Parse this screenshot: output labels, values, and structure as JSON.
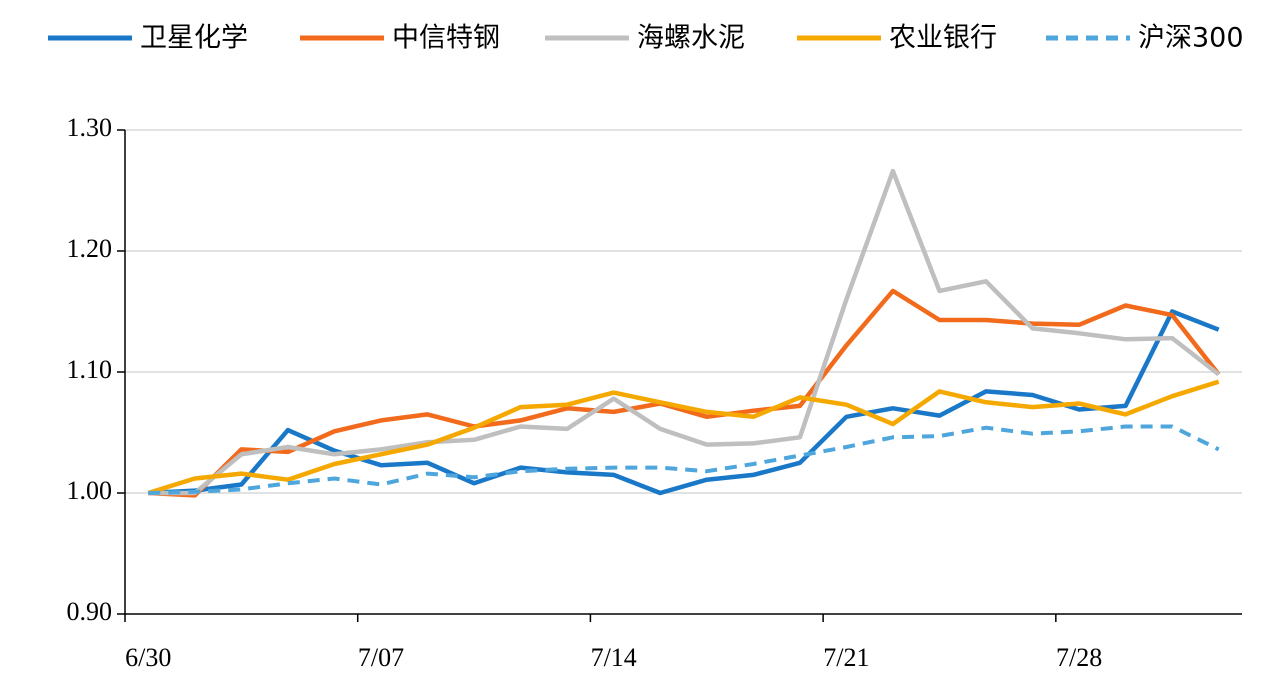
{
  "chart_data": {
    "type": "line",
    "categories": [
      "6/30",
      null,
      null,
      null,
      null,
      "7/07",
      null,
      null,
      null,
      null,
      "7/14",
      null,
      null,
      null,
      null,
      "7/21",
      null,
      null,
      null,
      null,
      "7/28",
      null,
      null,
      null
    ],
    "series": [
      {
        "name": "卫星化学",
        "color": "#1a78c8",
        "style": "solid",
        "values": [
          1.0,
          1.002,
          1.007,
          1.052,
          1.035,
          1.023,
          1.025,
          1.008,
          1.021,
          1.017,
          1.015,
          1.0,
          1.011,
          1.015,
          1.025,
          1.063,
          1.07,
          1.064,
          1.084,
          1.081,
          1.069,
          1.072,
          1.15,
          1.135
        ]
      },
      {
        "name": "中信特钢",
        "color": "#f26a1b",
        "style": "solid",
        "values": [
          1.0,
          0.998,
          1.036,
          1.034,
          1.051,
          1.06,
          1.065,
          1.055,
          1.06,
          1.07,
          1.067,
          1.074,
          1.063,
          1.068,
          1.072,
          1.122,
          1.167,
          1.143,
          1.143,
          1.14,
          1.139,
          1.155,
          1.147,
          1.098
        ]
      },
      {
        "name": "海螺水泥",
        "color": "#bfbfbf",
        "style": "solid",
        "values": [
          1.0,
          1.0,
          1.032,
          1.038,
          1.032,
          1.036,
          1.042,
          1.044,
          1.055,
          1.053,
          1.078,
          1.053,
          1.04,
          1.041,
          1.046,
          1.16,
          1.266,
          1.167,
          1.175,
          1.136,
          1.132,
          1.127,
          1.128,
          1.098
        ]
      },
      {
        "name": "农业银行",
        "color": "#f5a800",
        "style": "solid",
        "values": [
          1.0,
          1.012,
          1.016,
          1.011,
          1.024,
          1.032,
          1.04,
          1.054,
          1.071,
          1.073,
          1.083,
          1.075,
          1.067,
          1.063,
          1.079,
          1.073,
          1.057,
          1.084,
          1.075,
          1.071,
          1.074,
          1.065,
          1.08,
          1.092
        ]
      },
      {
        "name": "沪深300",
        "color": "#4ea6dc",
        "style": "dashed",
        "values": [
          1.0,
          1.001,
          1.003,
          1.008,
          1.012,
          1.007,
          1.016,
          1.013,
          1.018,
          1.02,
          1.021,
          1.021,
          1.018,
          1.024,
          1.031,
          1.038,
          1.046,
          1.047,
          1.054,
          1.049,
          1.051,
          1.055,
          1.055,
          1.036
        ]
      }
    ],
    "ylim": [
      0.9,
      1.3
    ],
    "yticks": [
      {
        "value": 0.9,
        "label": "0.90"
      },
      {
        "value": 1.0,
        "label": "1.00"
      },
      {
        "value": 1.1,
        "label": "1.10"
      },
      {
        "value": 1.2,
        "label": "1.20"
      },
      {
        "value": 1.3,
        "label": "1.30"
      }
    ],
    "grid": true,
    "legend": "top"
  }
}
